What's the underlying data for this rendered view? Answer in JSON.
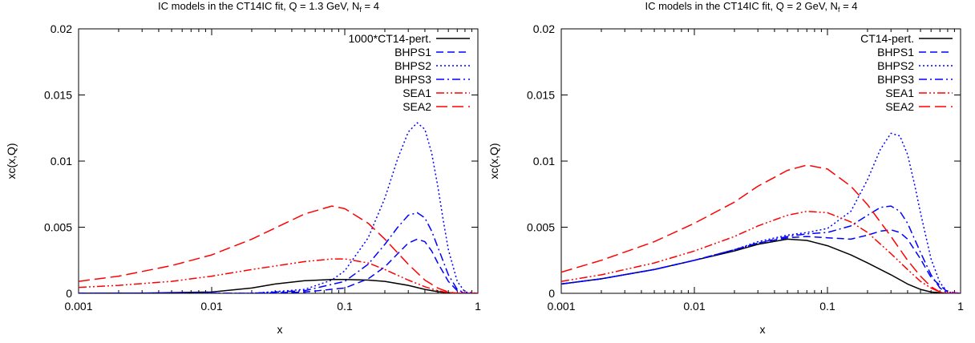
{
  "chart_data": [
    {
      "type": "line",
      "title": "IC models in the CT14IC fit, Q = 1.3 GeV, N",
      "title_sub": "f",
      "title_tail": " = 4",
      "xlabel": "x",
      "ylabel": "xc(x,Q)",
      "xscale": "log",
      "xlim": [
        0.001,
        1
      ],
      "ylim": [
        0,
        0.02
      ],
      "xticks": [
        0.001,
        0.01,
        0.1,
        1
      ],
      "xtick_labels": [
        "0.001",
        "0.01",
        "0.1",
        "1"
      ],
      "yticks": [
        0,
        0.005,
        0.01,
        0.015,
        0.02
      ],
      "ytick_labels": [
        "0",
        "0.005",
        "0.01",
        "0.015",
        "0.02"
      ],
      "legend_position": "top-right",
      "series": [
        {
          "name": "1000*CT14-pert.",
          "color": "#000000",
          "dash": "solid",
          "x": [
            0.001,
            0.003,
            0.01,
            0.02,
            0.03,
            0.05,
            0.08,
            0.1,
            0.15,
            0.2,
            0.3,
            0.4,
            0.5,
            0.6,
            0.7,
            0.8,
            0.9,
            1.0
          ],
          "y": [
            0.0,
            1e-05,
            0.0001,
            0.0004,
            0.0007,
            0.00095,
            0.00105,
            0.00105,
            0.001,
            0.0009,
            0.0006,
            0.0003,
            0.00012,
            4e-05,
            1e-05,
            0.0,
            0.0,
            0.0
          ]
        },
        {
          "name": "BHPS1",
          "color": "#0000ff",
          "dash": "dashed",
          "x": [
            0.001,
            0.02,
            0.05,
            0.1,
            0.15,
            0.2,
            0.25,
            0.3,
            0.35,
            0.4,
            0.45,
            0.5,
            0.6,
            0.7,
            0.8,
            1.0
          ],
          "y": [
            0.0,
            0.0,
            0.0001,
            0.0004,
            0.0011,
            0.002,
            0.003,
            0.0038,
            0.0041,
            0.0039,
            0.0032,
            0.0023,
            0.0009,
            0.0002,
            0.0,
            0.0
          ]
        },
        {
          "name": "BHPS2",
          "color": "#0000ff",
          "dash": "dotted",
          "x": [
            0.001,
            0.02,
            0.05,
            0.08,
            0.1,
            0.15,
            0.2,
            0.25,
            0.3,
            0.35,
            0.4,
            0.45,
            0.5,
            0.55,
            0.6,
            0.7,
            0.8,
            1.0
          ],
          "y": [
            0.0,
            0.0,
            0.0003,
            0.001,
            0.0017,
            0.0042,
            0.0072,
            0.0102,
            0.0122,
            0.0129,
            0.0124,
            0.0106,
            0.0081,
            0.0055,
            0.0033,
            0.0009,
            0.0001,
            0.0
          ]
        },
        {
          "name": "BHPS3",
          "color": "#0000ff",
          "dash": "dashdot",
          "x": [
            0.001,
            0.02,
            0.05,
            0.1,
            0.15,
            0.2,
            0.25,
            0.3,
            0.35,
            0.4,
            0.45,
            0.5,
            0.6,
            0.7,
            0.8,
            1.0
          ],
          "y": [
            0.0,
            0.0,
            0.0002,
            0.0009,
            0.0022,
            0.0037,
            0.005,
            0.0059,
            0.0061,
            0.0057,
            0.0047,
            0.0035,
            0.0014,
            0.0003,
            0.0,
            0.0
          ]
        },
        {
          "name": "SEA1",
          "color": "#ff0000",
          "dash": "dashdotdot",
          "x": [
            0.001,
            0.002,
            0.005,
            0.01,
            0.02,
            0.05,
            0.08,
            0.1,
            0.15,
            0.2,
            0.3,
            0.4,
            0.5,
            0.6,
            0.7,
            1.0
          ],
          "y": [
            0.00045,
            0.0006,
            0.0009,
            0.0013,
            0.0018,
            0.0024,
            0.0026,
            0.0026,
            0.0023,
            0.0018,
            0.001,
            0.0005,
            0.0002,
            5e-05,
            0.0,
            0.0
          ]
        },
        {
          "name": "SEA2",
          "color": "#ff0000",
          "dash": "longdash",
          "x": [
            0.001,
            0.002,
            0.005,
            0.01,
            0.02,
            0.05,
            0.08,
            0.1,
            0.15,
            0.2,
            0.3,
            0.4,
            0.5,
            0.6,
            0.7,
            1.0
          ],
          "y": [
            0.0009,
            0.0013,
            0.0021,
            0.0029,
            0.0041,
            0.006,
            0.0066,
            0.0064,
            0.0053,
            0.0041,
            0.0022,
            0.001,
            0.0004,
            0.0001,
            0.0,
            0.0
          ]
        }
      ]
    },
    {
      "type": "line",
      "title": "IC models in the CT14IC fit, Q = 2 GeV, N",
      "title_sub": "f",
      "title_tail": " = 4",
      "xlabel": "x",
      "ylabel": "xc(x,Q)",
      "xscale": "log",
      "xlim": [
        0.001,
        1
      ],
      "ylim": [
        0,
        0.02
      ],
      "xticks": [
        0.001,
        0.01,
        0.1,
        1
      ],
      "xtick_labels": [
        "0.001",
        "0.01",
        "0.1",
        "1"
      ],
      "yticks": [
        0,
        0.005,
        0.01,
        0.015,
        0.02
      ],
      "ytick_labels": [
        "0",
        "0.005",
        "0.01",
        "0.015",
        "0.02"
      ],
      "legend_position": "top-right",
      "series": [
        {
          "name": "CT14-pert.",
          "color": "#000000",
          "dash": "solid",
          "x": [
            0.001,
            0.002,
            0.005,
            0.01,
            0.02,
            0.03,
            0.05,
            0.07,
            0.1,
            0.15,
            0.2,
            0.3,
            0.4,
            0.5,
            0.6,
            0.8,
            1.0
          ],
          "y": [
            0.0007,
            0.0011,
            0.0018,
            0.0025,
            0.0032,
            0.0037,
            0.0041,
            0.004,
            0.0036,
            0.0029,
            0.0023,
            0.0014,
            0.0007,
            0.0003,
            0.0001,
            0.0,
            0.0
          ]
        },
        {
          "name": "BHPS1",
          "color": "#0000ff",
          "dash": "dashed",
          "x": [
            0.001,
            0.002,
            0.005,
            0.01,
            0.02,
            0.03,
            0.05,
            0.07,
            0.1,
            0.15,
            0.2,
            0.25,
            0.3,
            0.35,
            0.4,
            0.5,
            0.6,
            0.8,
            1.0
          ],
          "y": [
            0.0007,
            0.0011,
            0.0018,
            0.0025,
            0.0033,
            0.0038,
            0.0042,
            0.0043,
            0.0042,
            0.0041,
            0.0044,
            0.0047,
            0.0048,
            0.0046,
            0.0041,
            0.0026,
            0.0012,
            0.0001,
            0.0
          ]
        },
        {
          "name": "BHPS2",
          "color": "#0000ff",
          "dash": "dotted",
          "x": [
            0.001,
            0.002,
            0.005,
            0.01,
            0.02,
            0.03,
            0.05,
            0.07,
            0.1,
            0.15,
            0.2,
            0.25,
            0.3,
            0.35,
            0.4,
            0.45,
            0.5,
            0.6,
            0.7,
            0.8,
            1.0
          ],
          "y": [
            0.0007,
            0.0011,
            0.0018,
            0.0025,
            0.0033,
            0.0039,
            0.0044,
            0.0046,
            0.0049,
            0.0062,
            0.0086,
            0.0109,
            0.0121,
            0.0119,
            0.0105,
            0.0083,
            0.0061,
            0.0026,
            0.0008,
            0.0001,
            0.0
          ]
        },
        {
          "name": "BHPS3",
          "color": "#0000ff",
          "dash": "dashdot",
          "x": [
            0.001,
            0.002,
            0.005,
            0.01,
            0.02,
            0.03,
            0.05,
            0.07,
            0.1,
            0.15,
            0.2,
            0.25,
            0.3,
            0.35,
            0.4,
            0.5,
            0.6,
            0.7,
            0.8,
            1.0
          ],
          "y": [
            0.0007,
            0.0011,
            0.0018,
            0.0025,
            0.0033,
            0.0038,
            0.0043,
            0.0045,
            0.0046,
            0.0051,
            0.0059,
            0.0065,
            0.0066,
            0.0062,
            0.0053,
            0.0031,
            0.0014,
            0.0004,
            0.0,
            0.0
          ]
        },
        {
          "name": "SEA1",
          "color": "#ff0000",
          "dash": "dashdotdot",
          "x": [
            0.001,
            0.002,
            0.005,
            0.01,
            0.02,
            0.03,
            0.05,
            0.07,
            0.1,
            0.15,
            0.2,
            0.3,
            0.4,
            0.5,
            0.6,
            0.7,
            0.8,
            1.0
          ],
          "y": [
            0.0009,
            0.0014,
            0.0023,
            0.0032,
            0.0043,
            0.0051,
            0.0059,
            0.0062,
            0.0061,
            0.0054,
            0.0046,
            0.003,
            0.0018,
            0.0009,
            0.0004,
            0.0001,
            0.0,
            0.0
          ]
        },
        {
          "name": "SEA2",
          "color": "#ff0000",
          "dash": "longdash",
          "x": [
            0.001,
            0.002,
            0.005,
            0.01,
            0.02,
            0.03,
            0.05,
            0.07,
            0.1,
            0.15,
            0.2,
            0.3,
            0.4,
            0.5,
            0.6,
            0.7,
            0.8,
            1.0
          ],
          "y": [
            0.0016,
            0.0025,
            0.0039,
            0.0053,
            0.0069,
            0.0081,
            0.0093,
            0.0097,
            0.0094,
            0.0081,
            0.0067,
            0.0043,
            0.0025,
            0.0013,
            0.0005,
            0.0001,
            0.0,
            0.0
          ]
        }
      ]
    }
  ]
}
